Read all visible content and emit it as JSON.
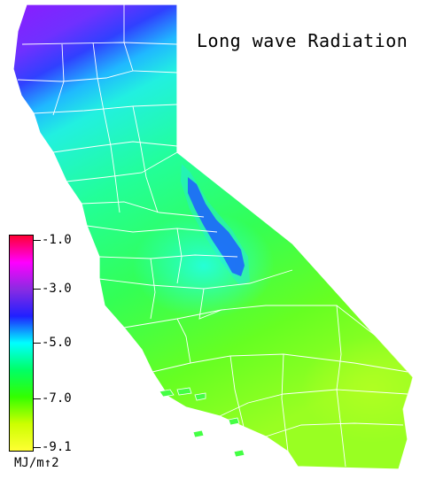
{
  "title": "Long wave Radiation",
  "legend": {
    "unit": "MJ/m↑2",
    "ticks": [
      "-1.0",
      "-3.0",
      "-5.0",
      "-7.0",
      "-9.1"
    ],
    "gradient_stops": [
      "#ff0033",
      "#ff00ff",
      "#8a2be2",
      "#2020ff",
      "#00ffff",
      "#00ff66",
      "#33ff00",
      "#ccff00",
      "#ffff33"
    ]
  },
  "map_colors": {
    "far_north": "#8a22ff",
    "north_blue": "#3344ff",
    "north_cyan": "#00e0ff",
    "central": "#22ff88",
    "valley_cyan": "#22ffee",
    "sierra_dark": "#1d1dff",
    "south": "#66ff22",
    "south_east": "#aaff22",
    "border": "#ffffff"
  }
}
